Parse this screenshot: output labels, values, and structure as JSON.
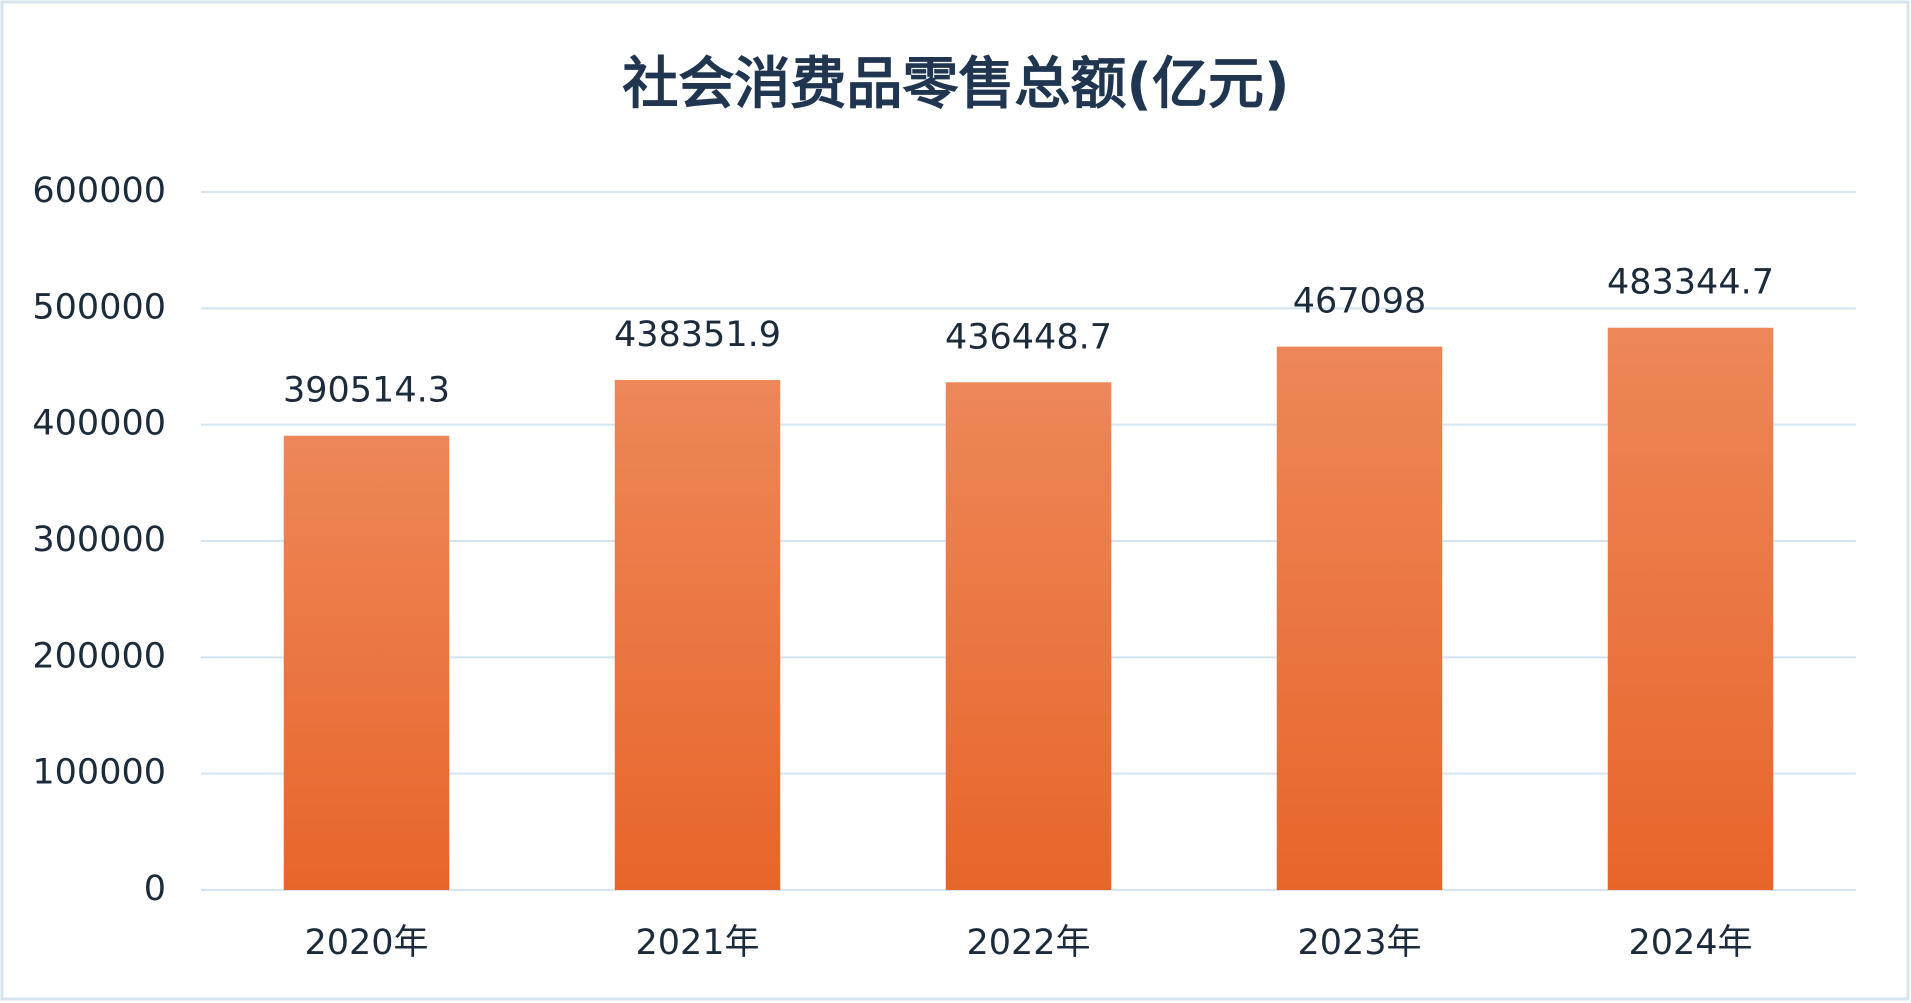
{
  "chart_data": {
    "type": "bar",
    "title": "社会消费品零售总额(亿元)",
    "categories": [
      "2020年",
      "2021年",
      "2022年",
      "2023年",
      "2024年"
    ],
    "values": [
      390514.3,
      438351.9,
      436448.7,
      467098,
      483344.7
    ],
    "color": "#e8652a",
    "ylim": [
      0,
      600000
    ],
    "yticks": [
      0,
      100000,
      200000,
      300000,
      400000,
      500000,
      600000
    ],
    "grid": true
  }
}
